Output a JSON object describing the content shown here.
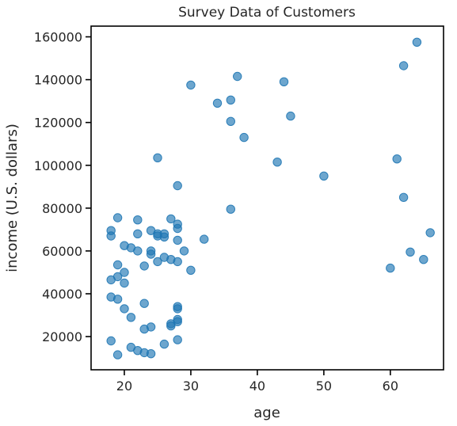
{
  "chart_data": {
    "type": "scatter",
    "title": "Survey Data of Customers",
    "xlabel": "age",
    "ylabel": "income (U.S. dollars)",
    "xlim": [
      15,
      68
    ],
    "ylim": [
      4500,
      165000
    ],
    "xticks": [
      20,
      30,
      40,
      50,
      60
    ],
    "yticks": [
      20000,
      40000,
      60000,
      80000,
      100000,
      120000,
      140000,
      160000
    ],
    "grid": false,
    "color": "#1f77b4",
    "points": [
      {
        "x": 18,
        "y": 69500
      },
      {
        "x": 18,
        "y": 67000
      },
      {
        "x": 18,
        "y": 46500
      },
      {
        "x": 18,
        "y": 38500
      },
      {
        "x": 18,
        "y": 18000
      },
      {
        "x": 19,
        "y": 75500
      },
      {
        "x": 19,
        "y": 53500
      },
      {
        "x": 19,
        "y": 48000
      },
      {
        "x": 19,
        "y": 37500
      },
      {
        "x": 19,
        "y": 11500
      },
      {
        "x": 20,
        "y": 62500
      },
      {
        "x": 20,
        "y": 50000
      },
      {
        "x": 20,
        "y": 45000
      },
      {
        "x": 20,
        "y": 33000
      },
      {
        "x": 21,
        "y": 61500
      },
      {
        "x": 21,
        "y": 29000
      },
      {
        "x": 21,
        "y": 15000
      },
      {
        "x": 22,
        "y": 74500
      },
      {
        "x": 22,
        "y": 68000
      },
      {
        "x": 22,
        "y": 60000
      },
      {
        "x": 22,
        "y": 13500
      },
      {
        "x": 23,
        "y": 53000
      },
      {
        "x": 23,
        "y": 35500
      },
      {
        "x": 23,
        "y": 23500
      },
      {
        "x": 23,
        "y": 12500
      },
      {
        "x": 24,
        "y": 69500
      },
      {
        "x": 24,
        "y": 60000
      },
      {
        "x": 24,
        "y": 58500
      },
      {
        "x": 24,
        "y": 24500
      },
      {
        "x": 24,
        "y": 12000
      },
      {
        "x": 25,
        "y": 103500
      },
      {
        "x": 25,
        "y": 68000
      },
      {
        "x": 25,
        "y": 67000
      },
      {
        "x": 25,
        "y": 55000
      },
      {
        "x": 26,
        "y": 68000
      },
      {
        "x": 26,
        "y": 66500
      },
      {
        "x": 26,
        "y": 57000
      },
      {
        "x": 26,
        "y": 16500
      },
      {
        "x": 27,
        "y": 75000
      },
      {
        "x": 27,
        "y": 56000
      },
      {
        "x": 27,
        "y": 26000
      },
      {
        "x": 27,
        "y": 25000
      },
      {
        "x": 28,
        "y": 90500
      },
      {
        "x": 28,
        "y": 72500
      },
      {
        "x": 28,
        "y": 70500
      },
      {
        "x": 28,
        "y": 65000
      },
      {
        "x": 28,
        "y": 55000
      },
      {
        "x": 28,
        "y": 34000
      },
      {
        "x": 28,
        "y": 33000
      },
      {
        "x": 28,
        "y": 28000
      },
      {
        "x": 28,
        "y": 27000
      },
      {
        "x": 28,
        "y": 18500
      },
      {
        "x": 29,
        "y": 60000
      },
      {
        "x": 30,
        "y": 137500
      },
      {
        "x": 30,
        "y": 51000
      },
      {
        "x": 32,
        "y": 65500
      },
      {
        "x": 34,
        "y": 129000
      },
      {
        "x": 36,
        "y": 130500
      },
      {
        "x": 36,
        "y": 120500
      },
      {
        "x": 36,
        "y": 79500
      },
      {
        "x": 37,
        "y": 141500
      },
      {
        "x": 38,
        "y": 113000
      },
      {
        "x": 43,
        "y": 101500
      },
      {
        "x": 44,
        "y": 139000
      },
      {
        "x": 45,
        "y": 123000
      },
      {
        "x": 50,
        "y": 95000
      },
      {
        "x": 60,
        "y": 52000
      },
      {
        "x": 61,
        "y": 103000
      },
      {
        "x": 62,
        "y": 146500
      },
      {
        "x": 62,
        "y": 85000
      },
      {
        "x": 63,
        "y": 59500
      },
      {
        "x": 64,
        "y": 157500
      },
      {
        "x": 65,
        "y": 56000
      },
      {
        "x": 66,
        "y": 68500
      }
    ]
  }
}
